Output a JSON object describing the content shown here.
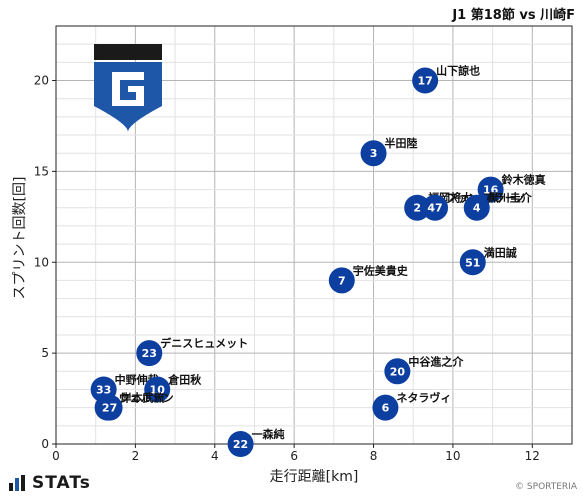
{
  "header": {
    "match": "J1 第18節 vs 川崎F"
  },
  "footer": {
    "brand": "STATs",
    "copyright": "© SPORTERIA"
  },
  "colors": {
    "marker": "#0d3fa0",
    "grid": "#cccccc",
    "axis": "#222222",
    "logo_blue": "#1f57a8",
    "logo_black": "#1a1a1a"
  },
  "chart_data": {
    "type": "scatter",
    "xlabel": "走行距離[km]",
    "ylabel": "スプリント回数[回]",
    "xlim": [
      0,
      13
    ],
    "ylim": [
      0,
      23
    ],
    "xticks": [
      0,
      2,
      4,
      6,
      8,
      10,
      12
    ],
    "yticks": [
      0,
      5,
      10,
      15,
      20
    ],
    "grid": true,
    "points": [
      {
        "num": "17",
        "name": "山下諒也",
        "x": 9.3,
        "y": 20
      },
      {
        "num": "3",
        "name": "半田陸",
        "x": 8.0,
        "y": 16
      },
      {
        "num": "16",
        "name": "鈴木徳真",
        "x": 10.95,
        "y": 14
      },
      {
        "num": "2",
        "name": "福岡将太",
        "x": 9.1,
        "y": 13
      },
      {
        "num": "47",
        "name": "ファン アラーノ",
        "x": 9.55,
        "y": 13
      },
      {
        "num": "4",
        "name": "黒川圭介",
        "x": 10.6,
        "y": 13
      },
      {
        "num": "51",
        "name": "満田誠",
        "x": 10.5,
        "y": 10
      },
      {
        "num": "7",
        "name": "宇佐美貴史",
        "x": 7.2,
        "y": 9
      },
      {
        "num": "23",
        "name": "デニスヒュメット",
        "x": 2.35,
        "y": 5
      },
      {
        "num": "20",
        "name": "中谷進之介",
        "x": 8.6,
        "y": 4
      },
      {
        "num": "33",
        "name": "中野伸哉",
        "x": 1.2,
        "y": 3
      },
      {
        "num": "10",
        "name": "倉田秋",
        "x": 2.55,
        "y": 3
      },
      {
        "num": "15",
        "name": "ウェルトン",
        "x": 1.3,
        "y": 2
      },
      {
        "num": "27",
        "name": "岸本武流",
        "x": 1.35,
        "y": 2
      },
      {
        "num": "6",
        "name": "ネタラヴィ",
        "x": 8.3,
        "y": 2
      },
      {
        "num": "22",
        "name": "一森純",
        "x": 4.65,
        "y": 0
      }
    ]
  }
}
